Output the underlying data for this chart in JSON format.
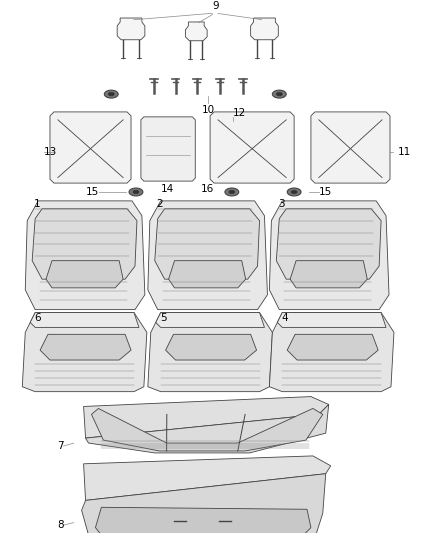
{
  "bg": "#ffffff",
  "lc": "#444444",
  "lc2": "#888888",
  "fs": 7.5,
  "label_color": "#000000"
}
